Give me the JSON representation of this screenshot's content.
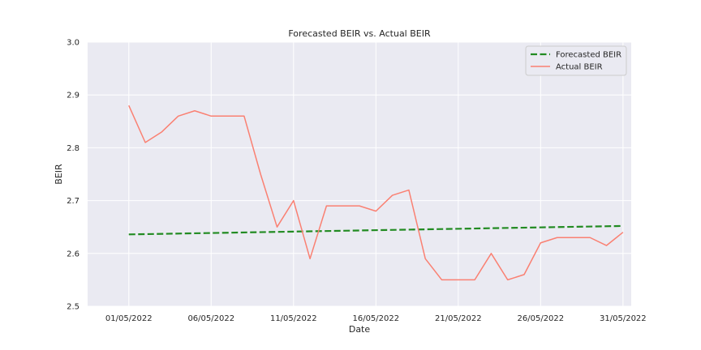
{
  "chart_data": {
    "type": "line",
    "title": "Forecasted BEIR vs. Actual BEIR",
    "xlabel": "Date",
    "ylabel": "BEIR",
    "ylim": [
      2.5,
      3.0
    ],
    "yticks": [
      "2.5",
      "2.6",
      "2.7",
      "2.8",
      "2.9",
      "3.0"
    ],
    "xticks": [
      "01/05/2022",
      "06/05/2022",
      "11/05/2022",
      "16/05/2022",
      "21/05/2022",
      "26/05/2022",
      "31/05/2022"
    ],
    "xlim_days": [
      -1.5,
      31.5
    ],
    "grid": true,
    "legend_position": "top-right",
    "series": [
      {
        "name": "Forecasted BEIR",
        "color": "#228b22",
        "style": "dashed",
        "x_days": [
          1,
          31
        ],
        "values": [
          2.636,
          2.652
        ]
      },
      {
        "name": "Actual BEIR",
        "color": "#fa8072",
        "style": "solid",
        "x_days": [
          1,
          2,
          3,
          4,
          5,
          6,
          7,
          8,
          9,
          10,
          11,
          12,
          13,
          14,
          15,
          16,
          17,
          18,
          19,
          20,
          21,
          22,
          23,
          24,
          25,
          26,
          27,
          28,
          29,
          30,
          31
        ],
        "values": [
          2.88,
          2.81,
          2.83,
          2.86,
          2.87,
          2.86,
          2.86,
          2.86,
          2.75,
          2.65,
          2.7,
          2.59,
          2.69,
          2.69,
          2.69,
          2.68,
          2.71,
          2.72,
          2.59,
          2.55,
          2.55,
          2.55,
          2.6,
          2.55,
          2.56,
          2.62,
          2.63,
          2.63,
          2.63,
          2.615,
          2.64
        ]
      }
    ]
  }
}
